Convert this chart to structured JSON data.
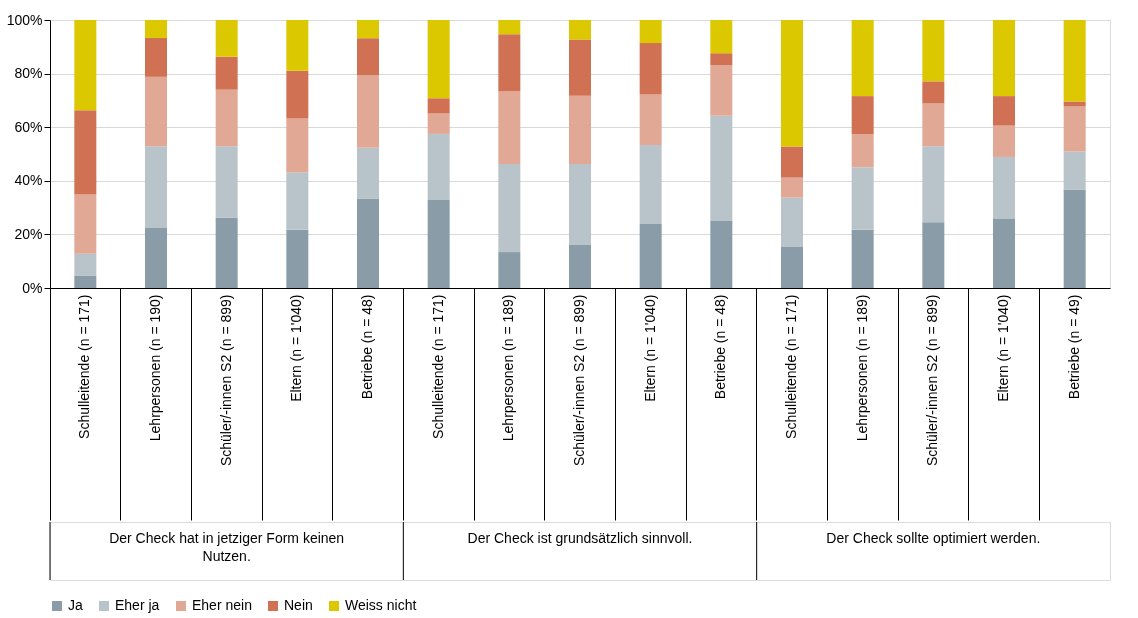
{
  "chart_data": {
    "type": "bar",
    "stacked": true,
    "categories": [
      "Schulleitende (n = 171)",
      "Lehrpersonen (n = 190)",
      "Schüler/-innen S2 (n = 899)",
      "Eltern (n = 1'040)",
      "Betriebe (n = 48)",
      "Schulleitende (n = 171)",
      "Lehrpersonen (n = 189)",
      "Schüler/-innen S2 (n = 899)",
      "Eltern (n = 1'040)",
      "Betriebe (n = 48)",
      "Schulleitende (n = 171)",
      "Lehrpersonen (n = 189)",
      "Schüler/-innen S2 (n = 899)",
      "Eltern (n = 1'040)",
      "Betriebe (n = 49)"
    ],
    "series": [
      {
        "name": "Ja",
        "color": "#8a9ca7",
        "values": [
          4.5,
          22.4,
          26.3,
          21.7,
          33.4,
          32.8,
          13.4,
          16.0,
          23.9,
          25.0,
          15.3,
          21.7,
          24.5,
          25.7,
          36.8
        ]
      },
      {
        "name": "Eher ja",
        "color": "#b8c4ca",
        "values": [
          8.3,
          30.5,
          26.6,
          21.5,
          18.9,
          24.7,
          32.9,
          30.3,
          29.5,
          39.3,
          18.4,
          23.4,
          28.4,
          23.2,
          14.1
        ]
      },
      {
        "name": "Eher nein",
        "color": "#e2a896",
        "values": [
          22.1,
          25.9,
          21.1,
          20.0,
          27.0,
          7.6,
          27.2,
          25.4,
          18.8,
          18.9,
          7.5,
          12.3,
          16.0,
          11.7,
          16.8
        ]
      },
      {
        "name": "Nein",
        "color": "#d07153",
        "values": [
          31.4,
          14.5,
          12.3,
          17.9,
          13.9,
          5.7,
          21.2,
          21.0,
          19.2,
          4.4,
          11.6,
          14.2,
          8.2,
          11.0,
          1.9
        ]
      },
      {
        "name": "Weiss nicht",
        "color": "#dcc800",
        "values": [
          33.7,
          6.7,
          13.7,
          18.9,
          6.8,
          29.2,
          5.3,
          7.3,
          8.6,
          12.4,
          47.2,
          28.4,
          22.9,
          28.4,
          30.4
        ]
      }
    ],
    "ylim": [
      0,
      100
    ],
    "yticks": [
      {
        "value": 0,
        "label": "0%"
      },
      {
        "value": 20,
        "label": "20%"
      },
      {
        "value": 40,
        "label": "40%"
      },
      {
        "value": 60,
        "label": "60%"
      },
      {
        "value": 80,
        "label": "80%"
      },
      {
        "value": 100,
        "label": "100%"
      }
    ],
    "grid": "y",
    "legend": "bottom",
    "annotations": [
      "Der Check hat in jetziger Form keinen Nutzen.",
      "Der Check ist grundsätzlich sinnvoll.",
      "Der Check sollte optimiert werden."
    ]
  }
}
